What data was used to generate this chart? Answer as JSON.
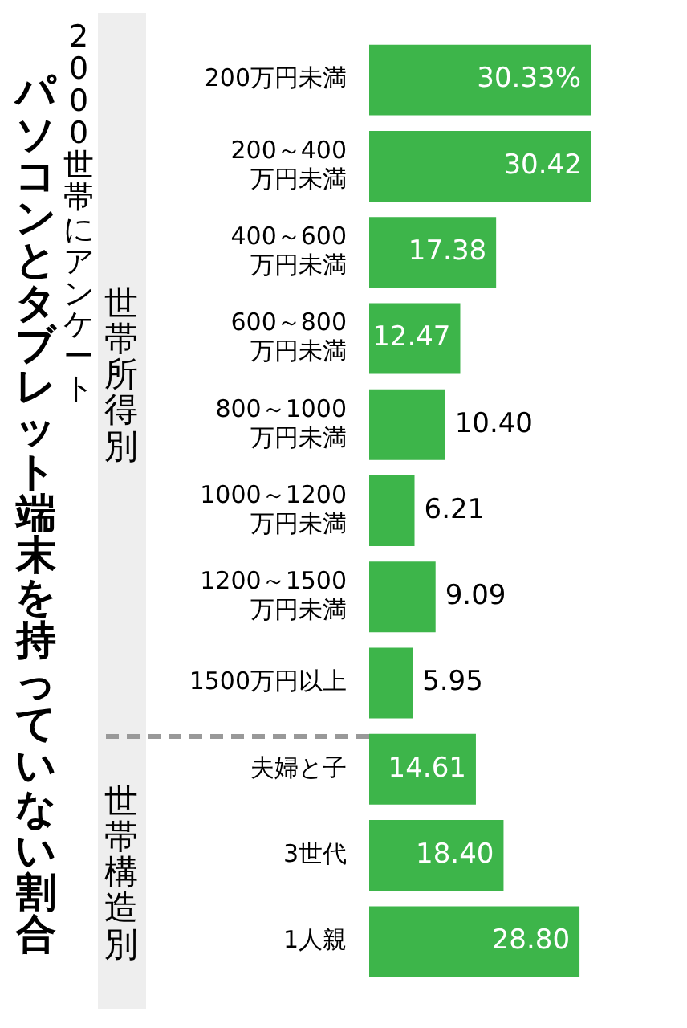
{
  "chart_data": {
    "type": "bar",
    "orientation": "horizontal",
    "title": "パソコンとタブレット端末を持っていない割合",
    "subtitle": "2000世帯にアンケート",
    "annotations": [
      "世帯所得別",
      "世帯構造別"
    ],
    "categories": [
      "200万円未満",
      "200～400\n万円未満",
      "400～600\n万円未満",
      "600～800\n万円未満",
      "800～1000\n万円未満",
      "1000～1200\n万円未満",
      "1200～1500\n万円未満",
      "1500万円以上",
      "夫婦と子",
      "3世代",
      "1人親"
    ],
    "values": [
      30.33,
      30.42,
      17.38,
      12.47,
      10.4,
      6.21,
      9.09,
      5.95,
      14.61,
      18.4,
      28.8
    ],
    "value_labels": [
      "30.33%",
      "30.42",
      "17.38",
      "12.47",
      "10.40",
      "6.21",
      "9.09",
      "5.95",
      "14.61",
      "18.40",
      "28.80"
    ],
    "color": "#3db54a",
    "grid": false,
    "legend": false
  }
}
